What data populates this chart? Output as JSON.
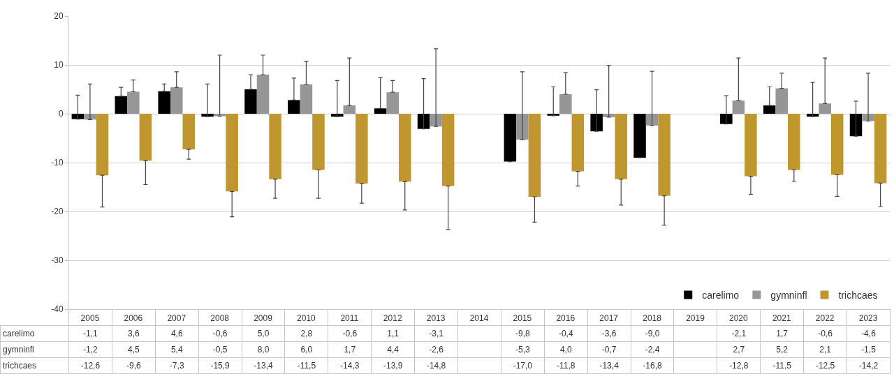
{
  "chart_data": {
    "type": "bar",
    "categories": [
      "2005",
      "2006",
      "2007",
      "2008",
      "2009",
      "2010",
      "2011",
      "2012",
      "2013",
      "2014",
      "2015",
      "2016",
      "2017",
      "2018",
      "2019",
      "2020",
      "2021",
      "2022",
      "2023"
    ],
    "series": [
      {
        "name": "carelimo",
        "color": "#000000",
        "values": [
          -1.1,
          3.6,
          4.6,
          -0.6,
          5.0,
          2.8,
          -0.6,
          1.1,
          -3.1,
          null,
          -9.8,
          -0.4,
          -3.6,
          -9.0,
          null,
          -2.1,
          1.7,
          -0.6,
          -4.6
        ],
        "value_labels": [
          "-1,1",
          "3,6",
          "4,6",
          "-0,6",
          "5,0",
          "2,8",
          "-0,6",
          "1,1",
          "-3,1",
          null,
          "-9,8",
          "-0,4",
          "-3,6",
          "-9,0",
          null,
          "-2,1",
          "1,7",
          "-0,6",
          "-4,6"
        ],
        "errors": [
          [
            -1.1,
            3.8
          ],
          [
            3.6,
            5.4
          ],
          [
            4.6,
            6.1
          ],
          [
            -0.6,
            6.1
          ],
          [
            5.0,
            8.0
          ],
          [
            2.8,
            7.3
          ],
          [
            -0.6,
            6.8
          ],
          [
            1.1,
            7.4
          ],
          [
            -3.1,
            7.2
          ],
          null,
          null,
          [
            -0.4,
            5.5
          ],
          [
            -3.6,
            4.9
          ],
          null,
          null,
          [
            -2.1,
            3.7
          ],
          [
            1.7,
            5.5
          ],
          [
            -0.6,
            6.4
          ],
          [
            -4.6,
            2.6
          ]
        ]
      },
      {
        "name": "gymninfl",
        "color": "#969696",
        "values": [
          -1.2,
          4.5,
          5.4,
          -0.5,
          8.0,
          6.0,
          1.7,
          4.4,
          -2.6,
          null,
          -5.3,
          4.0,
          -0.7,
          -2.4,
          null,
          2.7,
          5.2,
          2.1,
          -1.5
        ],
        "value_labels": [
          "-1,2",
          "4,5",
          "5,4",
          "-0,5",
          "8,0",
          "6,0",
          "1,7",
          "4,4",
          "-2,6",
          null,
          "-5,3",
          "4,0",
          "-0,7",
          "-2,4",
          null,
          "2,7",
          "5,2",
          "2,1",
          "-1,5"
        ],
        "errors": [
          [
            -1.2,
            6.1
          ],
          [
            4.5,
            6.9
          ],
          [
            5.4,
            8.6
          ],
          [
            -0.5,
            12.0
          ],
          [
            8.0,
            12.0
          ],
          [
            6.0,
            10.7
          ],
          [
            1.7,
            11.4
          ],
          [
            4.4,
            6.8
          ],
          [
            -2.6,
            13.3
          ],
          null,
          [
            -5.3,
            8.6
          ],
          [
            4.0,
            8.4
          ],
          [
            -0.7,
            9.9
          ],
          [
            -2.4,
            8.7
          ],
          null,
          [
            2.7,
            11.4
          ],
          [
            5.2,
            8.3
          ],
          [
            2.1,
            11.4
          ],
          [
            -1.5,
            8.3
          ]
        ]
      },
      {
        "name": "trichcaes",
        "color": "#c0962f",
        "values": [
          -12.6,
          -9.6,
          -7.3,
          -15.9,
          -13.4,
          -11.5,
          -14.3,
          -13.9,
          -14.8,
          null,
          -17.0,
          -11.8,
          -13.4,
          -16.8,
          null,
          -12.8,
          -11.5,
          -12.5,
          -14.2
        ],
        "value_labels": [
          "-12,6",
          "-9,6",
          "-7,3",
          "-15,9",
          "-13,4",
          "-11,5",
          "-14,3",
          "-13,9",
          "-14,8",
          null,
          "-17,0",
          "-11,8",
          "-13,4",
          "-16,8",
          null,
          "-12,8",
          "-11,5",
          "-12,5",
          "-14,2"
        ],
        "errors": [
          [
            -19.1,
            -12.6
          ],
          [
            -14.5,
            -9.6
          ],
          [
            -9.3,
            -7.3
          ],
          [
            -21.1,
            -15.9
          ],
          [
            -17.3,
            -13.4
          ],
          [
            -17.3,
            -11.5
          ],
          [
            -18.3,
            -14.3
          ],
          [
            -19.7,
            -13.9
          ],
          [
            -23.7,
            -14.8
          ],
          null,
          [
            -22.2,
            -17.0
          ],
          [
            -14.8,
            -11.8
          ],
          [
            -18.7,
            -13.4
          ],
          [
            -22.8,
            -16.8
          ],
          null,
          [
            -16.5,
            -12.8
          ],
          [
            -13.8,
            -11.5
          ],
          [
            -16.9,
            -12.5
          ],
          [
            -19.0,
            -14.2
          ]
        ]
      }
    ],
    "ylim": [
      -40,
      20
    ],
    "yticks": [
      -40,
      -30,
      -20,
      -10,
      0,
      10,
      20
    ],
    "grid": "y",
    "legend": "bottom right"
  }
}
